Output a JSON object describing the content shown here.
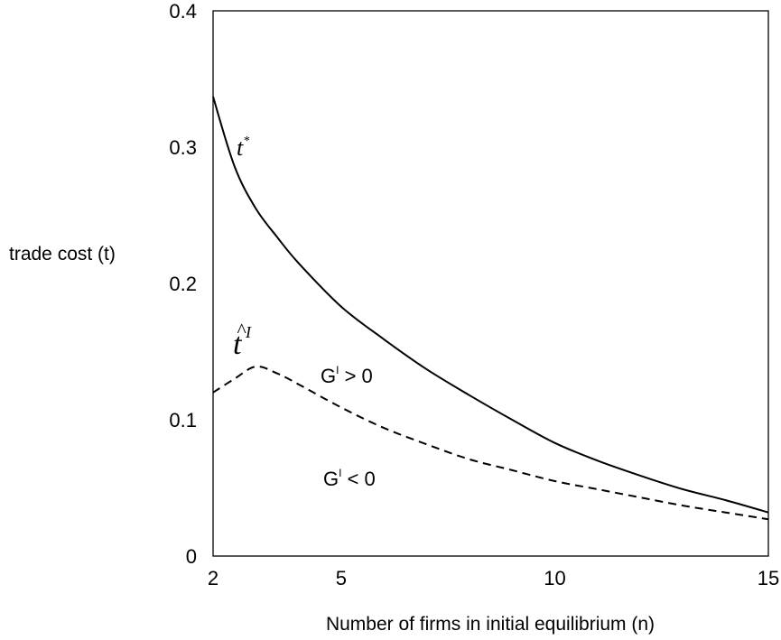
{
  "chart_data": {
    "type": "line",
    "title": "",
    "xlabel": "Number of firms in initial equilibrium (n)",
    "ylabel": "trade cost (t)",
    "xlim": [
      2,
      15
    ],
    "ylim": [
      0,
      0.4
    ],
    "x_ticks": [
      2,
      5,
      10,
      15
    ],
    "y_ticks": [
      0,
      0.1,
      0.2,
      0.3,
      0.4
    ],
    "y_tick_labels": [
      "0",
      "0.1",
      "0.2",
      "0.3",
      "0.4"
    ],
    "grid": false,
    "series": [
      {
        "name": "t*",
        "style": "solid",
        "color": "#000000",
        "x": [
          2,
          2.5,
          3,
          3.5,
          4,
          5,
          6,
          7,
          8,
          9,
          10,
          11,
          12,
          13,
          14,
          15
        ],
        "y": [
          0.337,
          0.286,
          0.255,
          0.234,
          0.215,
          0.183,
          0.159,
          0.137,
          0.118,
          0.1,
          0.083,
          0.07,
          0.059,
          0.049,
          0.041,
          0.032
        ]
      },
      {
        "name": "t̂ᴵ",
        "style": "dashed",
        "color": "#000000",
        "x": [
          2,
          2.5,
          3,
          3.5,
          4,
          5,
          6,
          7,
          8,
          9,
          10,
          11,
          12,
          13,
          14,
          15
        ],
        "y": [
          0.12,
          0.13,
          0.139,
          0.134,
          0.126,
          0.109,
          0.094,
          0.082,
          0.071,
          0.063,
          0.055,
          0.049,
          0.043,
          0.037,
          0.032,
          0.027
        ]
      }
    ],
    "annotations": {
      "t_star_main": "t",
      "t_star_sup": "*",
      "t_hat_main": "t",
      "t_hat_hat": "^",
      "t_hat_sup": "I",
      "region_above": {
        "base": "G",
        "sup": "I",
        "rest": " > 0"
      },
      "region_below": {
        "base": "G",
        "sup": "I",
        "rest": " < 0"
      }
    }
  }
}
